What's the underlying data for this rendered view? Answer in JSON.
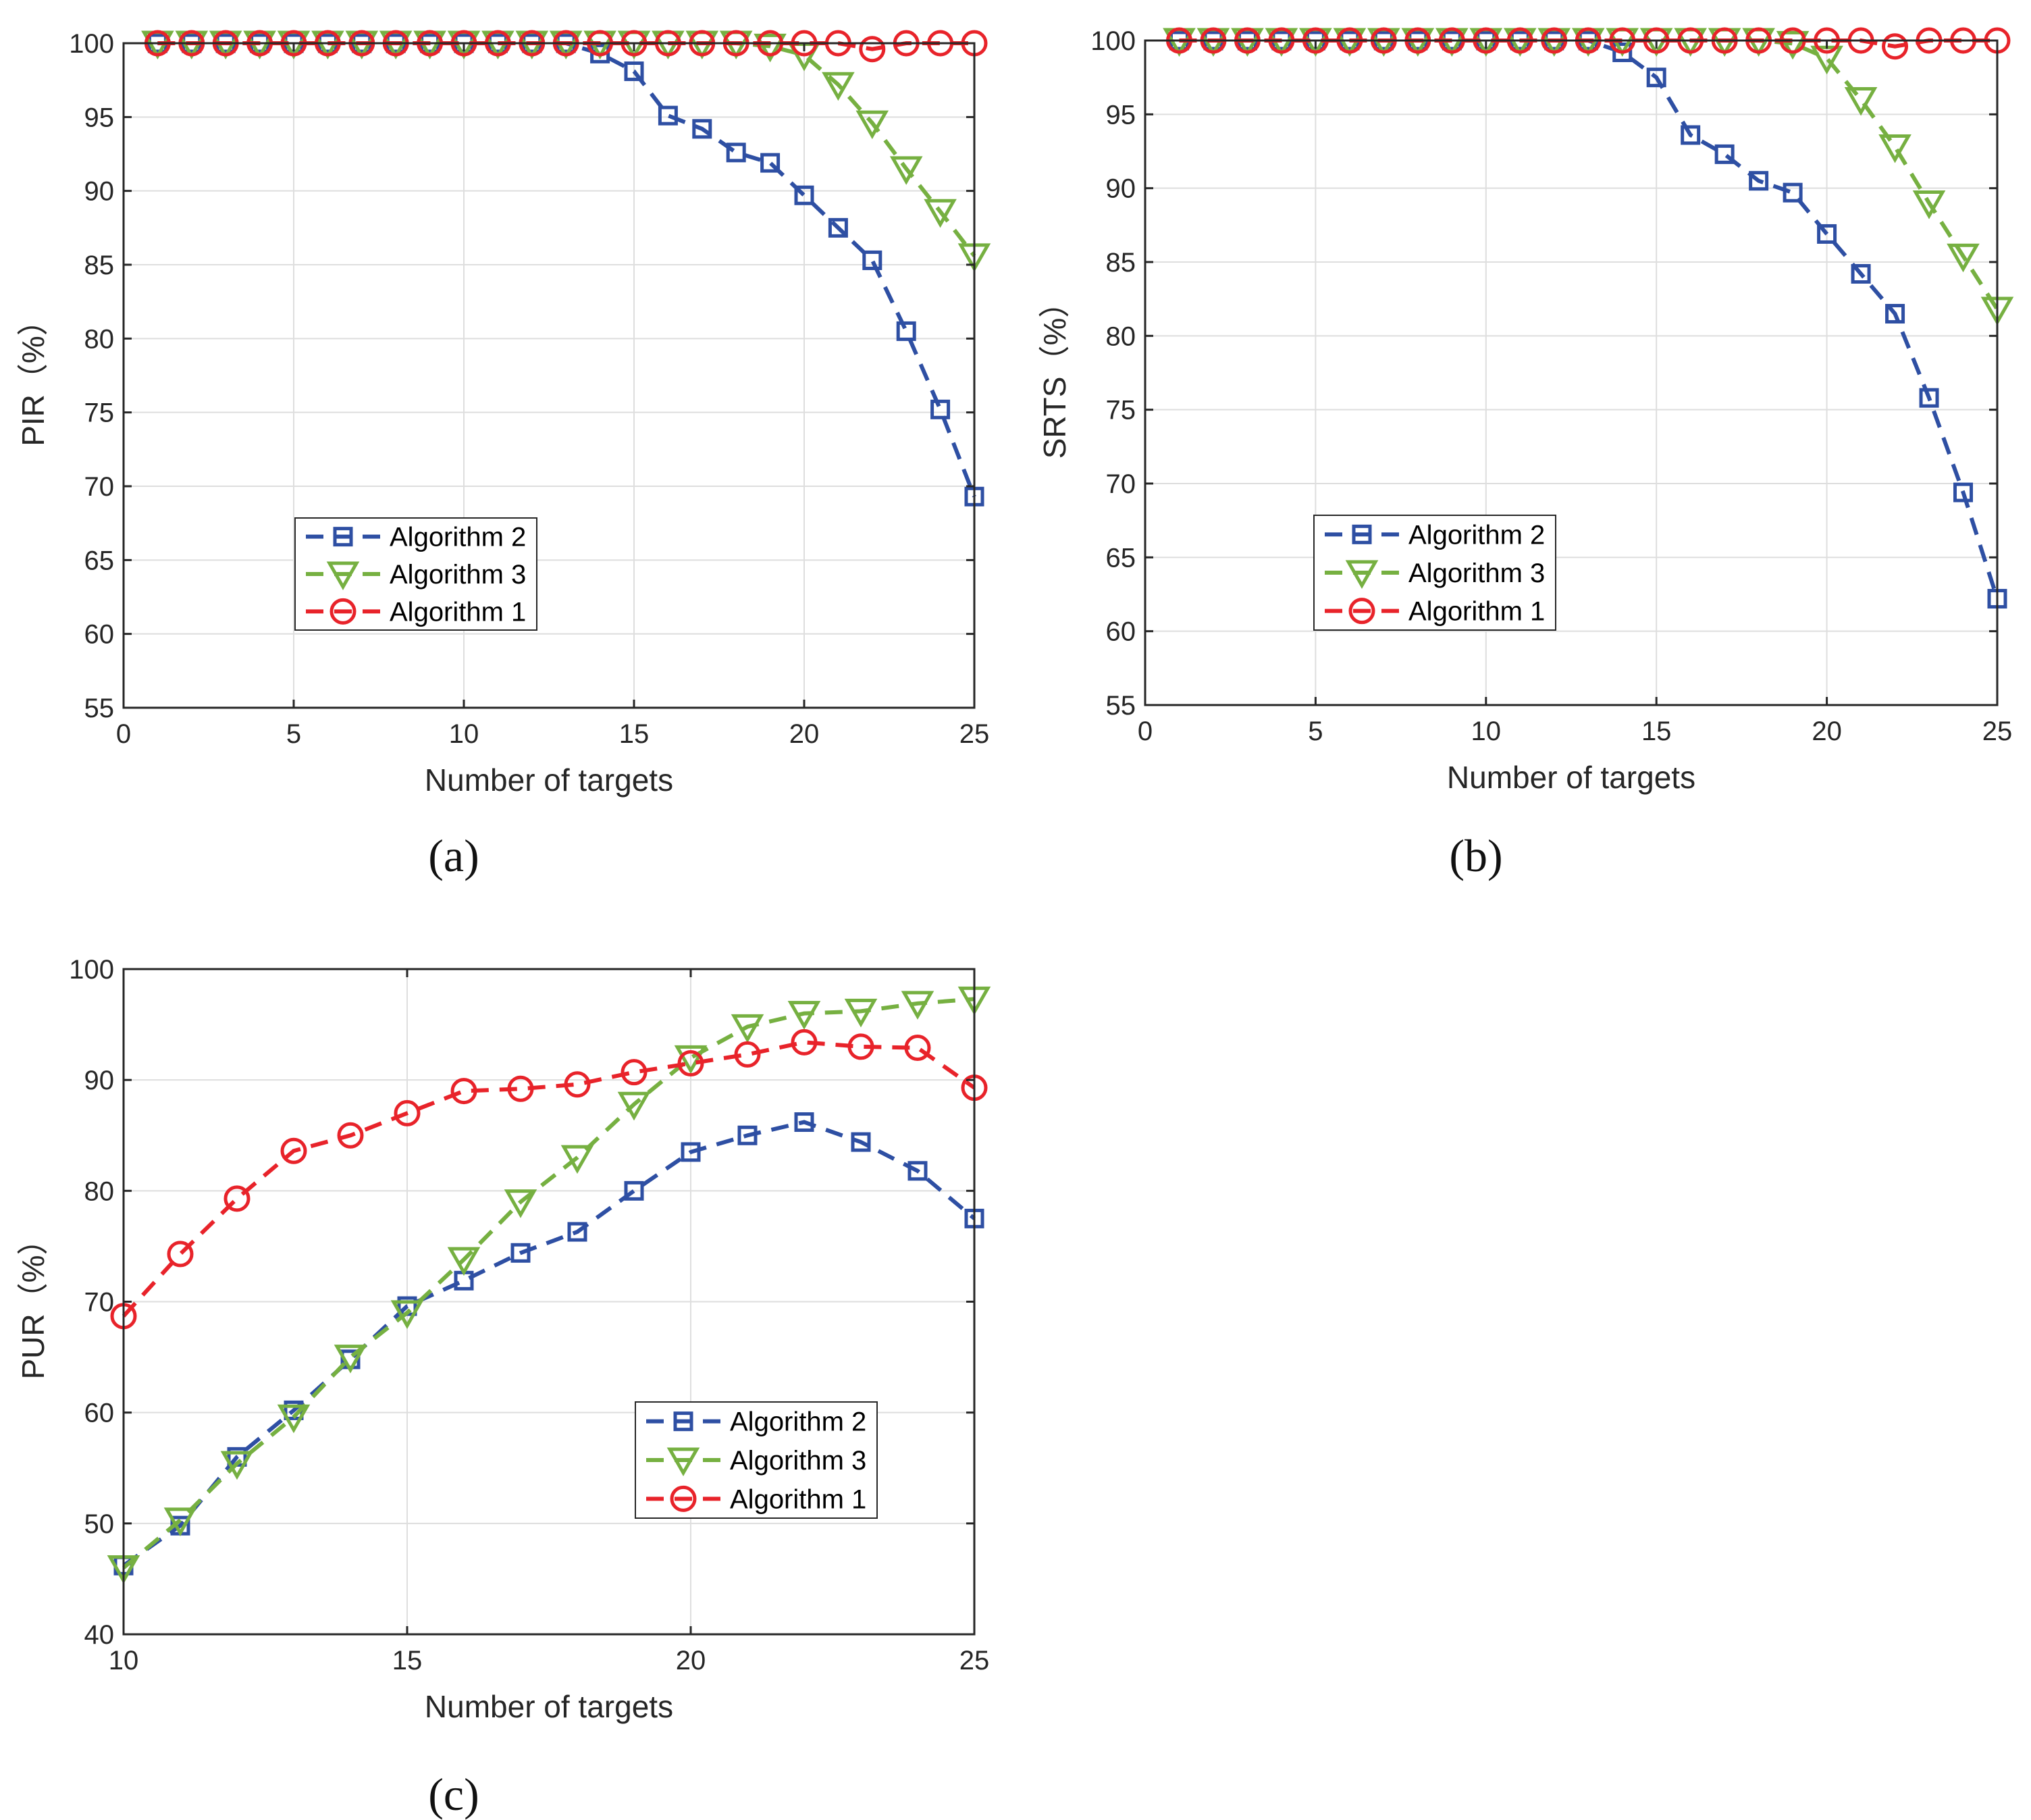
{
  "chart_data": [
    {
      "type": "line",
      "panel_label": "(a)",
      "xlabel": "Number of targets",
      "ylabel": "PIR（%）",
      "xlim": [
        0,
        25
      ],
      "ylim": [
        55,
        100
      ],
      "xticks": [
        0,
        5,
        10,
        15,
        20,
        25
      ],
      "yticks": [
        55,
        60,
        65,
        70,
        75,
        80,
        85,
        90,
        95,
        100
      ],
      "grid": true,
      "legend_position": "lower-center",
      "x": [
        1,
        2,
        3,
        4,
        5,
        6,
        7,
        8,
        9,
        10,
        11,
        12,
        13,
        14,
        15,
        16,
        17,
        18,
        19,
        20,
        21,
        22,
        23,
        24,
        25
      ],
      "series": [
        {
          "name": "Algorithm 2",
          "color": "#2e4fa3",
          "marker": "square",
          "values": [
            100,
            100,
            100,
            100,
            100,
            100,
            100,
            100,
            100,
            100,
            100,
            100,
            100,
            99.3,
            98.1,
            95.1,
            94.2,
            92.6,
            91.9,
            89.7,
            87.5,
            85.3,
            80.5,
            75.2,
            69.3
          ]
        },
        {
          "name": "Algorithm 3",
          "color": "#76b041",
          "marker": "triangle-down",
          "values": [
            100,
            100,
            100,
            100,
            100,
            100,
            100,
            100,
            100,
            100,
            100,
            100,
            100,
            100,
            100,
            100,
            100,
            100,
            99.8,
            99.2,
            97.2,
            94.6,
            91.5,
            88.6,
            85.6
          ]
        },
        {
          "name": "Algorithm 1",
          "color": "#e8232a",
          "marker": "circle",
          "values": [
            100,
            100,
            100,
            100,
            100,
            100,
            100,
            100,
            100,
            100,
            100,
            100,
            100,
            100,
            100,
            100,
            100,
            100,
            100,
            100,
            100,
            99.6,
            100,
            100,
            100
          ]
        }
      ]
    },
    {
      "type": "line",
      "panel_label": "(b)",
      "xlabel": "Number of targets",
      "ylabel": "SRTS（%）",
      "xlim": [
        0,
        25
      ],
      "ylim": [
        55,
        100
      ],
      "xticks": [
        0,
        5,
        10,
        15,
        20,
        25
      ],
      "yticks": [
        55,
        60,
        65,
        70,
        75,
        80,
        85,
        90,
        95,
        100
      ],
      "grid": true,
      "legend_position": "lower-center",
      "x": [
        1,
        2,
        3,
        4,
        5,
        6,
        7,
        8,
        9,
        10,
        11,
        12,
        13,
        14,
        15,
        16,
        17,
        18,
        19,
        20,
        21,
        22,
        23,
        24,
        25
      ],
      "series": [
        {
          "name": "Algorithm 2",
          "color": "#2e4fa3",
          "marker": "square",
          "values": [
            100,
            100,
            100,
            100,
            100,
            100,
            100,
            100,
            100,
            100,
            100,
            100,
            100,
            99.2,
            97.5,
            93.6,
            92.3,
            90.5,
            89.7,
            86.9,
            84.2,
            81.5,
            75.8,
            69.4,
            62.2
          ]
        },
        {
          "name": "Algorithm 3",
          "color": "#76b041",
          "marker": "triangle-down",
          "values": [
            100,
            100,
            100,
            100,
            100,
            100,
            100,
            100,
            100,
            100,
            100,
            100,
            100,
            100,
            100,
            100,
            100,
            100,
            99.8,
            98.8,
            96.0,
            92.8,
            89.0,
            85.4,
            81.8
          ]
        },
        {
          "name": "Algorithm 1",
          "color": "#e8232a",
          "marker": "circle",
          "values": [
            100,
            100,
            100,
            100,
            100,
            100,
            100,
            100,
            100,
            100,
            100,
            100,
            100,
            100,
            100,
            100,
            100,
            100,
            100,
            100,
            100,
            99.6,
            100,
            100,
            100
          ]
        }
      ]
    },
    {
      "type": "line",
      "panel_label": "(c)",
      "xlabel": "Number of targets",
      "ylabel": "PUR（%）",
      "xlim": [
        10,
        25
      ],
      "ylim": [
        40,
        100
      ],
      "xticks": [
        10,
        15,
        20,
        25
      ],
      "yticks": [
        40,
        50,
        60,
        70,
        80,
        90,
        100
      ],
      "grid": true,
      "legend_position": "lower-right",
      "x": [
        10,
        11,
        12,
        13,
        14,
        15,
        16,
        17,
        18,
        19,
        20,
        21,
        22,
        23,
        24,
        25
      ],
      "series": [
        {
          "name": "Algorithm 2",
          "color": "#2e4fa3",
          "marker": "square",
          "values": [
            46.2,
            49.8,
            56.0,
            60.2,
            64.8,
            69.6,
            71.9,
            74.4,
            76.3,
            80.0,
            83.5,
            85.0,
            86.2,
            84.4,
            81.8,
            77.5
          ]
        },
        {
          "name": "Algorithm 3",
          "color": "#76b041",
          "marker": "triangle-down",
          "values": [
            46.0,
            50.3,
            55.4,
            59.6,
            65.0,
            69.0,
            73.8,
            79.0,
            83.0,
            87.8,
            92.0,
            94.8,
            96.0,
            96.2,
            96.9,
            97.3
          ]
        },
        {
          "name": "Algorithm 1",
          "color": "#e8232a",
          "marker": "circle",
          "values": [
            68.7,
            74.3,
            79.3,
            83.6,
            85.0,
            87.0,
            89.0,
            89.2,
            89.6,
            90.7,
            91.5,
            92.3,
            93.4,
            93.0,
            92.9,
            89.3
          ]
        }
      ]
    }
  ]
}
